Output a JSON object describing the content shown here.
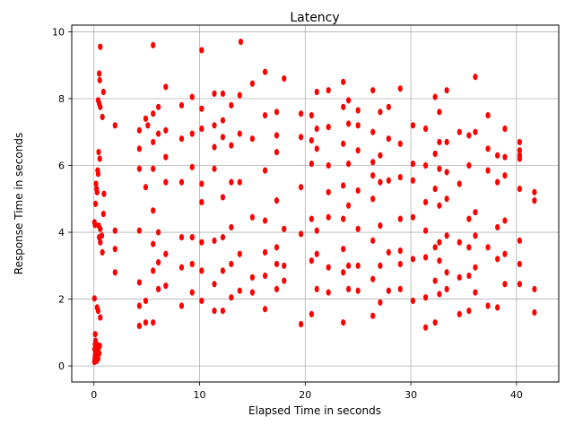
{
  "chart_data": {
    "type": "scatter",
    "title": "Latency",
    "xlabel": "Elapsed Time in seconds",
    "ylabel": "Response Time in seconds",
    "xlim": [
      -2.1,
      44.0
    ],
    "ylim": [
      -0.48,
      10.2
    ],
    "xticks": [
      0,
      10,
      20,
      30,
      40
    ],
    "yticks": [
      0,
      2,
      4,
      6,
      8,
      10
    ],
    "grid": true,
    "marker_color": "#ff0000",
    "series": [
      {
        "points": [
          [
            0.05,
            0.12
          ],
          [
            0.08,
            0.2
          ],
          [
            0.1,
            0.28
          ],
          [
            0.12,
            0.35
          ],
          [
            0.15,
            0.42
          ],
          [
            0.06,
            0.5
          ],
          [
            0.18,
            0.58
          ],
          [
            0.1,
            0.65
          ],
          [
            0.2,
            0.3
          ],
          [
            0.25,
            0.15
          ],
          [
            0.3,
            0.5
          ],
          [
            0.35,
            0.62
          ],
          [
            0.4,
            0.22
          ],
          [
            0.45,
            0.55
          ],
          [
            0.5,
            0.38
          ],
          [
            0.55,
            0.6
          ],
          [
            0.12,
            0.95
          ],
          [
            0.15,
            0.75
          ],
          [
            0.05,
            2.02
          ],
          [
            0.3,
            1.75
          ],
          [
            0.4,
            1.65
          ],
          [
            0.6,
            1.45
          ],
          [
            0.05,
            4.3
          ],
          [
            0.1,
            4.22
          ],
          [
            0.15,
            4.85
          ],
          [
            0.2,
            5.45
          ],
          [
            0.25,
            5.3
          ],
          [
            0.3,
            5.2
          ],
          [
            0.35,
            5.85
          ],
          [
            0.4,
            5.75
          ],
          [
            0.45,
            6.4
          ],
          [
            0.55,
            6.2
          ],
          [
            0.6,
            4.1
          ],
          [
            0.45,
            4.2
          ],
          [
            0.5,
            3.85
          ],
          [
            0.6,
            3.7
          ],
          [
            0.75,
            3.9
          ],
          [
            0.8,
            3.4
          ],
          [
            0.9,
            4.55
          ],
          [
            0.95,
            5.15
          ],
          [
            0.4,
            7.95
          ],
          [
            0.5,
            7.85
          ],
          [
            0.6,
            7.75
          ],
          [
            0.8,
            7.45
          ],
          [
            0.9,
            8.2
          ],
          [
            0.5,
            8.75
          ],
          [
            0.55,
            8.55
          ],
          [
            0.6,
            9.55
          ],
          [
            2.0,
            7.2
          ],
          [
            2.0,
            4.05
          ],
          [
            2.0,
            3.5
          ],
          [
            2.0,
            2.8
          ],
          [
            4.3,
            1.2
          ],
          [
            4.3,
            1.8
          ],
          [
            4.3,
            2.5
          ],
          [
            4.3,
            4.05
          ],
          [
            4.3,
            5.9
          ],
          [
            4.3,
            6.5
          ],
          [
            4.3,
            7.05
          ],
          [
            4.9,
            1.3
          ],
          [
            4.9,
            1.95
          ],
          [
            4.9,
            5.35
          ],
          [
            4.9,
            7.4
          ],
          [
            5.1,
            7.2
          ],
          [
            5.6,
            9.6
          ],
          [
            5.6,
            1.3
          ],
          [
            5.6,
            2.85
          ],
          [
            5.6,
            3.65
          ],
          [
            5.6,
            4.65
          ],
          [
            5.6,
            5.9
          ],
          [
            5.6,
            6.7
          ],
          [
            5.6,
            7.55
          ],
          [
            6.1,
            2.3
          ],
          [
            6.1,
            3.1
          ],
          [
            6.1,
            4.0
          ],
          [
            6.1,
            6.95
          ],
          [
            6.1,
            7.75
          ],
          [
            6.8,
            2.4
          ],
          [
            6.8,
            3.35
          ],
          [
            6.8,
            5.5
          ],
          [
            6.8,
            6.25
          ],
          [
            6.8,
            7.05
          ],
          [
            6.8,
            8.35
          ],
          [
            8.3,
            1.8
          ],
          [
            8.3,
            2.95
          ],
          [
            8.3,
            3.85
          ],
          [
            8.3,
            5.5
          ],
          [
            8.3,
            6.8
          ],
          [
            8.3,
            7.8
          ],
          [
            9.3,
            2.2
          ],
          [
            9.3,
            3.05
          ],
          [
            9.3,
            3.85
          ],
          [
            9.3,
            5.95
          ],
          [
            9.3,
            6.95
          ],
          [
            9.3,
            8.05
          ],
          [
            10.2,
            1.95
          ],
          [
            10.2,
            2.85
          ],
          [
            10.2,
            3.7
          ],
          [
            10.2,
            4.9
          ],
          [
            10.2,
            5.45
          ],
          [
            10.2,
            7.1
          ],
          [
            10.2,
            7.7
          ],
          [
            10.2,
            9.45
          ],
          [
            11.4,
            1.65
          ],
          [
            11.4,
            2.45
          ],
          [
            11.4,
            3.75
          ],
          [
            11.4,
            5.9
          ],
          [
            11.4,
            6.55
          ],
          [
            11.4,
            7.2
          ],
          [
            11.4,
            8.15
          ],
          [
            12.2,
            1.65
          ],
          [
            12.2,
            2.85
          ],
          [
            12.2,
            3.85
          ],
          [
            12.2,
            5.05
          ],
          [
            12.2,
            6.85
          ],
          [
            12.2,
            7.35
          ],
          [
            12.2,
            8.15
          ],
          [
            13.0,
            2.05
          ],
          [
            13.0,
            3.05
          ],
          [
            13.0,
            4.15
          ],
          [
            13.0,
            5.5
          ],
          [
            13.0,
            6.6
          ],
          [
            13.0,
            7.8
          ],
          [
            13.8,
            2.25
          ],
          [
            13.8,
            3.35
          ],
          [
            13.8,
            5.5
          ],
          [
            13.8,
            6.95
          ],
          [
            13.8,
            8.1
          ],
          [
            13.9,
            9.7
          ],
          [
            15.0,
            2.2
          ],
          [
            15.0,
            2.65
          ],
          [
            15.0,
            4.45
          ],
          [
            15.0,
            6.8
          ],
          [
            15.0,
            8.45
          ],
          [
            16.2,
            1.7
          ],
          [
            16.2,
            2.7
          ],
          [
            16.2,
            3.4
          ],
          [
            16.2,
            4.35
          ],
          [
            16.2,
            5.85
          ],
          [
            16.2,
            7.5
          ],
          [
            16.2,
            8.8
          ],
          [
            17.3,
            2.3
          ],
          [
            17.3,
            3.05
          ],
          [
            17.3,
            3.55
          ],
          [
            17.3,
            4.95
          ],
          [
            17.3,
            6.4
          ],
          [
            17.3,
            6.9
          ],
          [
            17.3,
            7.6
          ],
          [
            18.0,
            2.55
          ],
          [
            18.0,
            3.0
          ],
          [
            18.0,
            4.1
          ],
          [
            18.0,
            8.6
          ],
          [
            19.6,
            1.25
          ],
          [
            19.6,
            3.95
          ],
          [
            19.6,
            5.35
          ],
          [
            19.6,
            6.85
          ],
          [
            19.6,
            7.55
          ],
          [
            20.6,
            1.55
          ],
          [
            20.6,
            3.15
          ],
          [
            20.6,
            4.4
          ],
          [
            20.6,
            6.05
          ],
          [
            20.6,
            6.75
          ],
          [
            20.6,
            7.5
          ],
          [
            21.1,
            2.3
          ],
          [
            21.1,
            3.35
          ],
          [
            21.1,
            4.05
          ],
          [
            21.1,
            6.5
          ],
          [
            21.1,
            7.1
          ],
          [
            21.1,
            8.2
          ],
          [
            22.2,
            2.2
          ],
          [
            22.2,
            2.95
          ],
          [
            22.2,
            4.45
          ],
          [
            22.2,
            5.2
          ],
          [
            22.2,
            6.0
          ],
          [
            22.2,
            7.15
          ],
          [
            22.2,
            8.25
          ],
          [
            23.6,
            1.3
          ],
          [
            23.6,
            2.8
          ],
          [
            23.6,
            3.5
          ],
          [
            23.6,
            4.4
          ],
          [
            23.6,
            5.4
          ],
          [
            23.6,
            6.65
          ],
          [
            23.6,
            7.75
          ],
          [
            23.6,
            8.5
          ],
          [
            24.1,
            2.3
          ],
          [
            24.1,
            3.0
          ],
          [
            24.1,
            4.8
          ],
          [
            24.1,
            6.05
          ],
          [
            24.1,
            7.25
          ],
          [
            24.1,
            7.95
          ],
          [
            25.0,
            2.25
          ],
          [
            25.0,
            3.0
          ],
          [
            25.0,
            4.1
          ],
          [
            25.0,
            5.25
          ],
          [
            25.0,
            6.45
          ],
          [
            25.0,
            7.2
          ],
          [
            25.0,
            7.65
          ],
          [
            26.4,
            1.5
          ],
          [
            26.4,
            2.6
          ],
          [
            26.4,
            3.75
          ],
          [
            26.4,
            5.0
          ],
          [
            26.4,
            5.7
          ],
          [
            26.4,
            6.1
          ],
          [
            26.4,
            7.0
          ],
          [
            26.4,
            8.25
          ],
          [
            27.1,
            1.9
          ],
          [
            27.1,
            3.0
          ],
          [
            27.1,
            4.2
          ],
          [
            27.1,
            5.5
          ],
          [
            27.1,
            6.3
          ],
          [
            27.1,
            7.6
          ],
          [
            27.9,
            2.25
          ],
          [
            27.9,
            3.4
          ],
          [
            27.9,
            5.55
          ],
          [
            27.9,
            6.8
          ],
          [
            27.9,
            7.75
          ],
          [
            29.0,
            2.3
          ],
          [
            29.0,
            3.05
          ],
          [
            29.0,
            3.45
          ],
          [
            29.0,
            4.4
          ],
          [
            29.0,
            5.65
          ],
          [
            29.0,
            6.65
          ],
          [
            29.0,
            8.3
          ],
          [
            30.2,
            1.95
          ],
          [
            30.2,
            3.2
          ],
          [
            30.2,
            4.45
          ],
          [
            30.2,
            5.55
          ],
          [
            30.2,
            6.05
          ],
          [
            30.2,
            7.2
          ],
          [
            31.4,
            1.15
          ],
          [
            31.4,
            2.05
          ],
          [
            31.4,
            3.25
          ],
          [
            31.4,
            4.05
          ],
          [
            31.4,
            4.9
          ],
          [
            31.4,
            6.0
          ],
          [
            31.4,
            7.1
          ],
          [
            32.3,
            1.3
          ],
          [
            32.3,
            2.55
          ],
          [
            32.3,
            3.55
          ],
          [
            32.3,
            5.3
          ],
          [
            32.3,
            6.35
          ],
          [
            32.3,
            8.05
          ],
          [
            32.7,
            2.15
          ],
          [
            32.7,
            3.15
          ],
          [
            32.7,
            3.7
          ],
          [
            32.7,
            4.8
          ],
          [
            32.7,
            5.9
          ],
          [
            32.7,
            6.7
          ],
          [
            32.7,
            7.6
          ],
          [
            33.4,
            2.3
          ],
          [
            33.4,
            2.8
          ],
          [
            33.4,
            3.9
          ],
          [
            33.4,
            5.0
          ],
          [
            33.4,
            5.8
          ],
          [
            33.4,
            6.7
          ],
          [
            33.4,
            8.25
          ],
          [
            34.6,
            1.55
          ],
          [
            34.6,
            2.65
          ],
          [
            34.6,
            3.7
          ],
          [
            34.6,
            5.45
          ],
          [
            34.6,
            7.0
          ],
          [
            35.5,
            1.65
          ],
          [
            35.5,
            2.7
          ],
          [
            35.5,
            3.55
          ],
          [
            35.5,
            4.4
          ],
          [
            35.5,
            6.0
          ],
          [
            35.5,
            6.9
          ],
          [
            36.1,
            2.2
          ],
          [
            36.1,
            2.95
          ],
          [
            36.1,
            3.9
          ],
          [
            36.1,
            4.6
          ],
          [
            36.1,
            7.0
          ],
          [
            36.1,
            8.65
          ],
          [
            37.3,
            1.8
          ],
          [
            37.3,
            3.55
          ],
          [
            37.3,
            5.85
          ],
          [
            37.3,
            6.5
          ],
          [
            37.3,
            7.5
          ],
          [
            38.2,
            1.75
          ],
          [
            38.2,
            3.2
          ],
          [
            38.2,
            4.15
          ],
          [
            38.2,
            5.5
          ],
          [
            38.2,
            6.3
          ],
          [
            38.9,
            2.45
          ],
          [
            38.9,
            3.35
          ],
          [
            38.9,
            4.35
          ],
          [
            38.9,
            5.7
          ],
          [
            38.9,
            6.25
          ],
          [
            38.9,
            7.1
          ],
          [
            40.3,
            2.45
          ],
          [
            40.3,
            3.05
          ],
          [
            40.3,
            3.75
          ],
          [
            40.3,
            5.3
          ],
          [
            40.3,
            6.2
          ],
          [
            40.3,
            6.3
          ],
          [
            40.3,
            6.45
          ],
          [
            40.3,
            6.7
          ],
          [
            41.7,
            1.6
          ],
          [
            41.7,
            2.3
          ],
          [
            41.7,
            4.95
          ],
          [
            41.7,
            5.2
          ]
        ]
      }
    ]
  }
}
